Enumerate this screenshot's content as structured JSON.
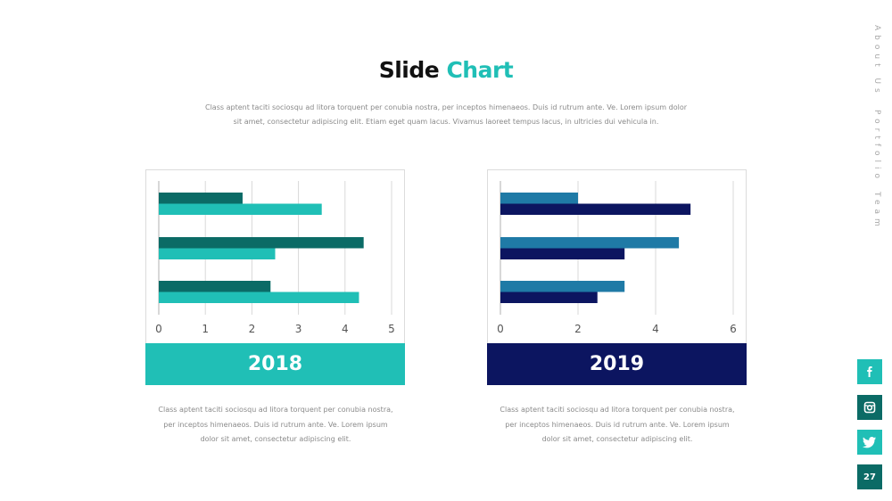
{
  "title": {
    "word1": "Slide",
    "word2": "Chart"
  },
  "intro": "Class aptent taciti sociosqu ad litora torquent per conubia nostra, per inceptos himenaeos. Duis id rutrum ante. Ve. Lorem ipsum dolor sit amet, consectetur adipiscing elit. Etiam eget quam lacus. Vivamus laoreet tempus lacus, in ultricies dui vehicula in.",
  "nav": [
    "About Us",
    "Portfolio",
    "Team"
  ],
  "social": [
    "facebook-icon",
    "instagram-icon",
    "twitter-icon"
  ],
  "page_number": "27",
  "colors": {
    "accent": "#20bfb6",
    "accent_dark": "#0b6b66",
    "navy": "#0c1560",
    "blue": "#1f7aa6"
  },
  "charts": [
    {
      "year": "2018",
      "caption": "Class aptent taciti sociosqu ad litora torquent per conubia nostra, per inceptos himenaeos. Duis id rutrum ante. Ve. Lorem ipsum dolor sit amet, consectetur adipiscing elit."
    },
    {
      "year": "2019",
      "caption": "Class aptent taciti sociosqu ad litora torquent per conubia nostra, per inceptos himenaeos. Duis id rutrum ante. Ve. Lorem ipsum dolor sit amet, consectetur adipiscing elit."
    }
  ],
  "chart_data": [
    {
      "type": "bar",
      "orientation": "horizontal",
      "categories": [
        "",
        "",
        ""
      ],
      "series": [
        {
          "values": [
            1.8,
            4.4,
            2.4
          ],
          "color": "#0b6b66"
        },
        {
          "values": [
            3.5,
            2.5,
            4.3
          ],
          "color": "#20bfb6"
        }
      ],
      "xlim": [
        0,
        5
      ],
      "xticks": [
        0,
        1,
        2,
        3,
        4,
        5
      ],
      "grid": true
    },
    {
      "type": "bar",
      "orientation": "horizontal",
      "categories": [
        "",
        "",
        ""
      ],
      "series": [
        {
          "values": [
            2.0,
            4.6,
            3.2
          ],
          "color": "#1f7aa6"
        },
        {
          "values": [
            4.9,
            3.2,
            2.5
          ],
          "color": "#0c1560"
        }
      ],
      "xlim": [
        0,
        6
      ],
      "xticks": [
        0,
        2,
        4,
        6
      ],
      "grid": true
    }
  ]
}
